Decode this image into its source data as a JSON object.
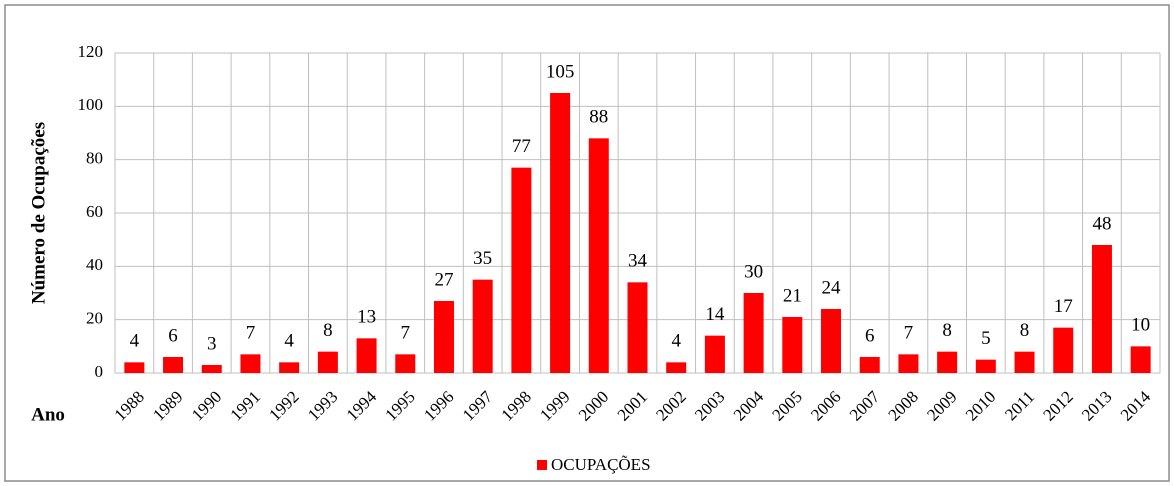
{
  "chart_data": {
    "type": "bar",
    "ylabel": "Número de Ocupações",
    "xlabel": "Ano",
    "categories": [
      "1988",
      "1989",
      "1990",
      "1991",
      "1992",
      "1993",
      "1994",
      "1995",
      "1996",
      "1997",
      "1998",
      "1999",
      "2000",
      "2001",
      "2002",
      "2003",
      "2004",
      "2005",
      "2006",
      "2007",
      "2008",
      "2009",
      "2010",
      "2011",
      "2012",
      "2013",
      "2014"
    ],
    "series": [
      {
        "name": "OCUPAÇÕES",
        "color": "#ff0000",
        "values": [
          4,
          6,
          3,
          7,
          4,
          8,
          13,
          7,
          27,
          35,
          77,
          105,
          88,
          34,
          4,
          14,
          30,
          21,
          24,
          6,
          7,
          8,
          5,
          8,
          17,
          48,
          10
        ]
      }
    ],
    "ylim": [
      0,
      120
    ],
    "yticks": [
      0,
      20,
      40,
      60,
      80,
      100,
      120
    ],
    "grid": true,
    "legend": "bottom"
  }
}
